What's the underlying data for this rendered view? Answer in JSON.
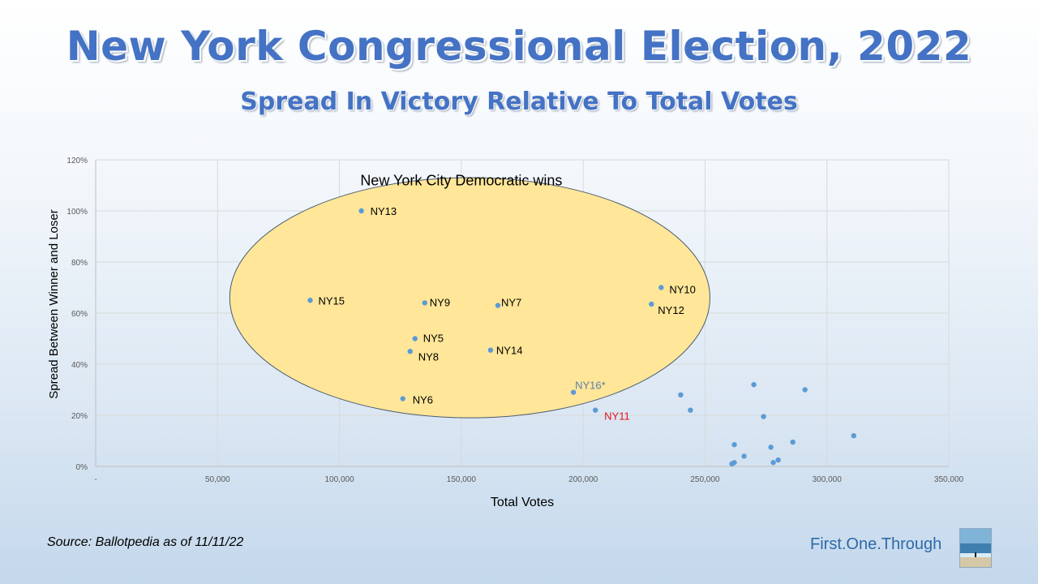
{
  "page": {
    "title": "New York Congressional Election, 2022",
    "subtitle": "Spread In Victory Relative To Total Votes",
    "source": "Source: Ballotpedia as of 11/11/22",
    "brand": "First.One.Through"
  },
  "chart_data": {
    "type": "scatter",
    "xlabel": "Total Votes",
    "ylabel": "Spread Between Winner and Loser",
    "xlim": [
      0,
      350000
    ],
    "ylim": [
      0,
      1.2
    ],
    "x_ticks": [
      0,
      50000,
      100000,
      150000,
      200000,
      250000,
      300000,
      350000
    ],
    "x_tick_labels": [
      "-",
      "50,000",
      "100,000",
      "150,000",
      "200,000",
      "250,000",
      "300,000",
      "350,000"
    ],
    "y_ticks": [
      0,
      0.2,
      0.4,
      0.6,
      0.8,
      1.0,
      1.2
    ],
    "y_tick_labels": [
      "0%",
      "20%",
      "40%",
      "60%",
      "80%",
      "100%",
      "120%"
    ],
    "grid": true,
    "point_color": "#5b9bd5",
    "ellipse_fill": "#ffe699",
    "annotation": "New York City Democratic wins",
    "points": [
      {
        "x": 109000,
        "y": 1.0,
        "label": "NY13",
        "label_color": "#000000"
      },
      {
        "x": 88000,
        "y": 0.65,
        "label": "NY15",
        "label_color": "#000000"
      },
      {
        "x": 135000,
        "y": 0.64,
        "label": "NY9",
        "label_color": "#000000"
      },
      {
        "x": 165000,
        "y": 0.63,
        "label": "NY7",
        "label_color": "#000000"
      },
      {
        "x": 232000,
        "y": 0.7,
        "label": "NY10",
        "label_color": "#000000"
      },
      {
        "x": 228000,
        "y": 0.635,
        "label": "NY12",
        "label_color": "#000000"
      },
      {
        "x": 131000,
        "y": 0.5,
        "label": "NY5",
        "label_color": "#000000"
      },
      {
        "x": 129000,
        "y": 0.45,
        "label": "NY8",
        "label_color": "#000000"
      },
      {
        "x": 162000,
        "y": 0.455,
        "label": "NY14",
        "label_color": "#000000"
      },
      {
        "x": 126000,
        "y": 0.265,
        "label": "NY6",
        "label_color": "#000000"
      },
      {
        "x": 196000,
        "y": 0.29,
        "label": "NY16*",
        "label_color": "#5b7fa8"
      },
      {
        "x": 205000,
        "y": 0.22,
        "label": "NY11",
        "label_color": "#e0141e"
      },
      {
        "x": 240000,
        "y": 0.28,
        "label": ""
      },
      {
        "x": 244000,
        "y": 0.22,
        "label": ""
      },
      {
        "x": 270000,
        "y": 0.32,
        "label": ""
      },
      {
        "x": 274000,
        "y": 0.195,
        "label": ""
      },
      {
        "x": 291000,
        "y": 0.3,
        "label": ""
      },
      {
        "x": 311000,
        "y": 0.12,
        "label": ""
      },
      {
        "x": 262000,
        "y": 0.085,
        "label": ""
      },
      {
        "x": 266000,
        "y": 0.04,
        "label": ""
      },
      {
        "x": 261000,
        "y": 0.01,
        "label": ""
      },
      {
        "x": 262000,
        "y": 0.015,
        "label": ""
      },
      {
        "x": 277000,
        "y": 0.075,
        "label": ""
      },
      {
        "x": 278000,
        "y": 0.015,
        "label": ""
      },
      {
        "x": 280000,
        "y": 0.025,
        "label": ""
      },
      {
        "x": 286000,
        "y": 0.095,
        "label": ""
      }
    ]
  }
}
